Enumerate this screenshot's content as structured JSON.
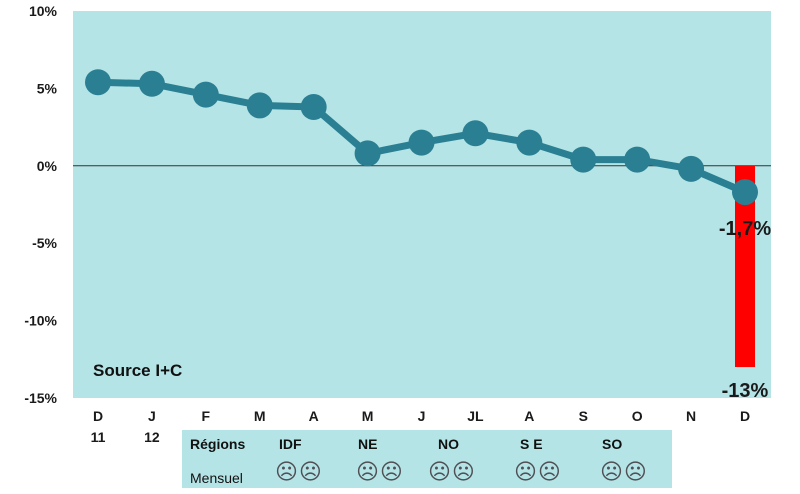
{
  "chart_data": {
    "type": "line",
    "title": "",
    "xlabel": "",
    "ylabel": "",
    "ylim": [
      -15,
      10
    ],
    "y_ticks": [
      "10%",
      "5%",
      "0%",
      "-5%",
      "-10%",
      "-15%"
    ],
    "categories": [
      "D",
      "J",
      "F",
      "M",
      "A",
      "M",
      "J",
      "JL",
      "A",
      "S",
      "O",
      "N",
      "D"
    ],
    "category_sublabels": [
      "11",
      "12",
      "",
      "",
      "",
      "",
      "",
      "",
      "",
      "",
      "",
      "",
      ""
    ],
    "series": [
      {
        "values": [
          5.4,
          5.3,
          4.6,
          3.9,
          3.8,
          0.8,
          1.5,
          2.1,
          1.5,
          0.4,
          0.4,
          -0.2,
          -1.7
        ]
      }
    ],
    "bar": {
      "category_index": 12,
      "value": -13
    },
    "annotations": {
      "last_point_label": "-1,7%",
      "bar_label": "-13%"
    },
    "source_note": "Source I+C",
    "grid": false,
    "colors": {
      "plot_bg": "#b4e4e6",
      "line": "#2a7f93",
      "bar": "#ff0000",
      "zero_line": "#333333"
    }
  },
  "regions": {
    "header_label": "Régions",
    "row_label": "Mensuel",
    "face_glyph": "☹☹",
    "items": [
      "IDF",
      "NE",
      "NO",
      "S E",
      "SO"
    ]
  }
}
